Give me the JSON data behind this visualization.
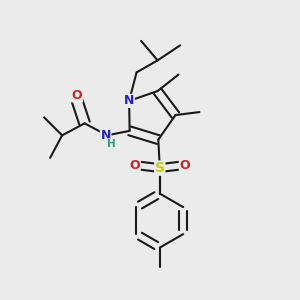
{
  "bg_color": "#ebebeb",
  "line_color": "#1a1a1a",
  "bond_width": 1.5,
  "atom_colors": {
    "N": "#2222cc",
    "O": "#cc2222",
    "S": "#cccc00",
    "H": "#2a9d7f",
    "C": "#1a1a1a"
  },
  "font_size": 8.5,
  "fig_size": [
    3.0,
    3.0
  ],
  "dpi": 100
}
